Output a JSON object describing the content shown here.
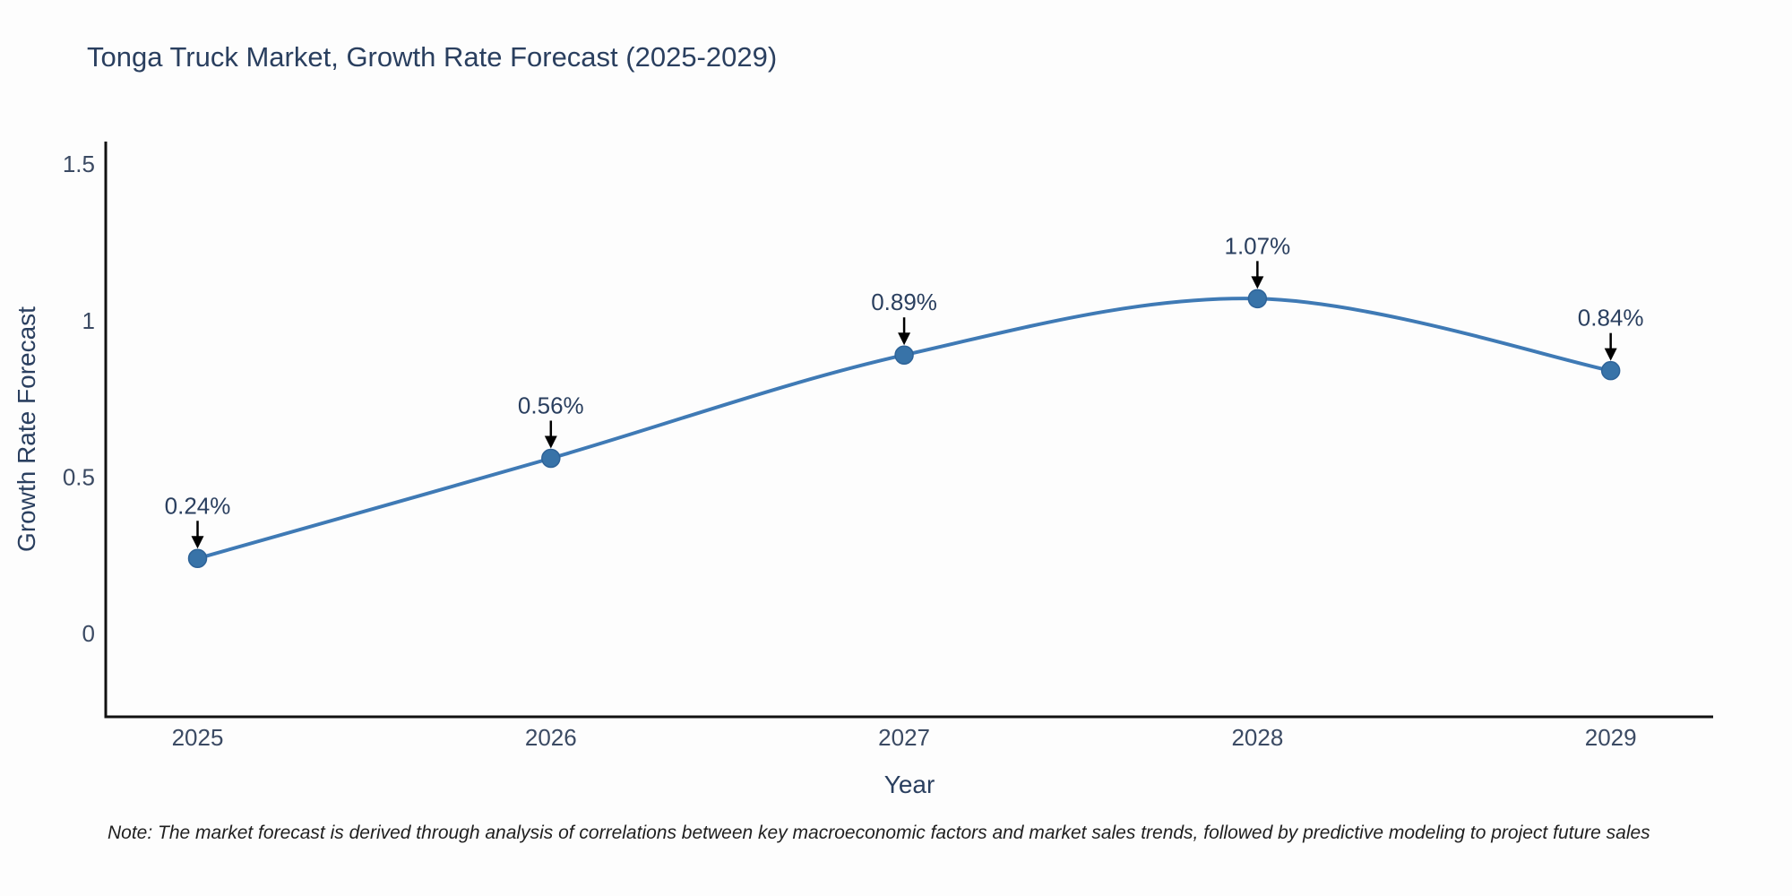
{
  "title": "Tonga Truck Market, Growth Rate Forecast (2025-2029)",
  "note": "Note: The market forecast is derived through analysis of correlations between key macroeconomic factors and market sales trends, followed by predictive modeling to project future sales",
  "chart_data": {
    "type": "line",
    "title": "Tonga Truck Market, Growth Rate Forecast (2025-2029)",
    "xlabel": "Year",
    "ylabel": "Growth Rate Forecast",
    "x": [
      2025,
      2026,
      2027,
      2028,
      2029
    ],
    "series": [
      {
        "name": "Growth Rate Forecast",
        "values": [
          0.24,
          0.56,
          0.89,
          1.07,
          0.84
        ],
        "point_labels": [
          "0.24%",
          "0.56%",
          "0.89%",
          "1.07%",
          "0.84%"
        ]
      }
    ],
    "line_shape": "spline",
    "grid": false,
    "legend": "none",
    "xaxis": {
      "range": [
        2024.74,
        2029.29
      ],
      "ticks": [
        {
          "v": 2025,
          "label": "2025"
        },
        {
          "v": 2026,
          "label": "2026"
        },
        {
          "v": 2027,
          "label": "2027"
        },
        {
          "v": 2028,
          "label": "2028"
        },
        {
          "v": 2029,
          "label": "2029"
        }
      ]
    },
    "yaxis": {
      "range": [
        -0.266,
        1.572
      ],
      "ticks": [
        {
          "v": 0,
          "label": "0"
        },
        {
          "v": 0.5,
          "label": "0.5"
        },
        {
          "v": 1,
          "label": "1"
        },
        {
          "v": 1.5,
          "label": "1.5"
        }
      ]
    },
    "colors": {
      "line": "#3f7ab5",
      "marker_fill": "#3873a8",
      "marker_edge": "#2e6398",
      "axis": "#111111",
      "tick_text": "#3b4a63",
      "annotation_text": "#2a3f5f",
      "annotation_arrow": "#000000",
      "title_text": "#2a3f5f",
      "background": "#fdfdfd"
    }
  }
}
